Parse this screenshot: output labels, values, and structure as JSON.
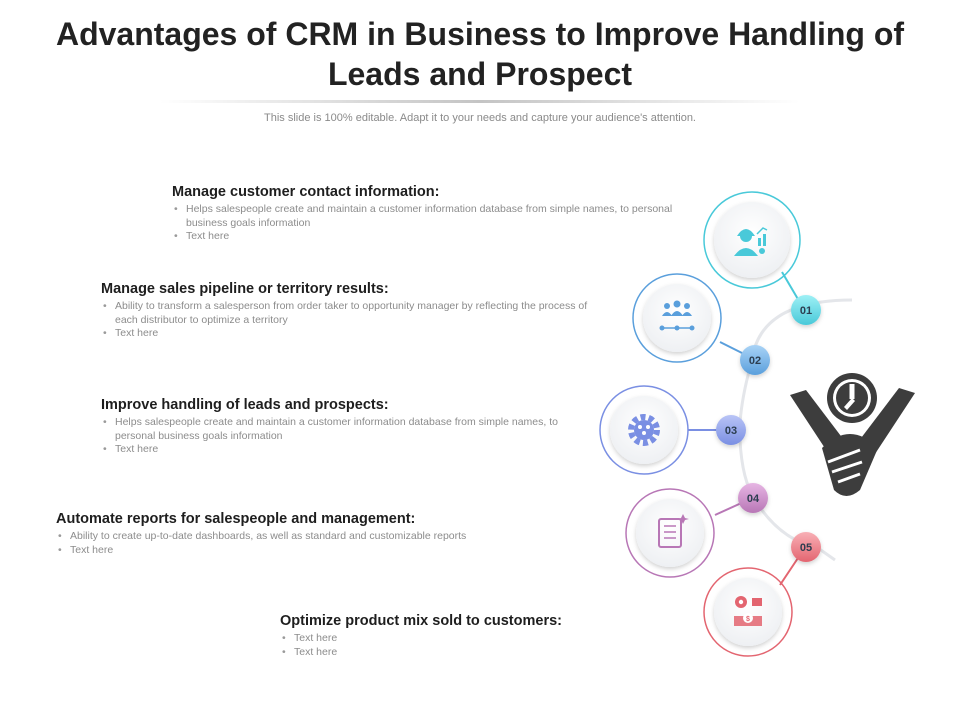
{
  "title": "Advantages of CRM in Business to Improve Handling of Leads and Prospect",
  "subtitle": "This slide is 100% editable. Adapt it to your needs and capture your audience's attention.",
  "items": [
    {
      "heading": "Manage customer contact information:",
      "bullets": [
        "Helps salespeople create and maintain a customer information database from simple names, to personal business goals information",
        "Text here"
      ],
      "number": "01",
      "color": "#3fc7d6",
      "icon": "salesperson-growth-icon"
    },
    {
      "heading": "Manage sales pipeline or territory results:",
      "bullets": [
        "Ability to transform a salesperson from order taker to opportunity manager by reflecting the process of each distributor to optimize a territory",
        "Text here"
      ],
      "number": "02",
      "color": "#4a9bd8",
      "icon": "team-network-icon"
    },
    {
      "heading": "Improve handling of leads and prospects:",
      "bullets": [
        "Helps salespeople create and maintain a customer information database from simple names, to personal business goals information",
        "Text here"
      ],
      "number": "03",
      "color": "#6e86e0",
      "icon": "gear-people-icon"
    },
    {
      "heading": "Automate reports for salespeople and management:",
      "bullets": [
        "Ability to create up-to-date dashboards, as well as standard and customizable reports",
        "Text here"
      ],
      "number": "04",
      "color": "#b46fb3",
      "icon": "checklist-report-icon"
    },
    {
      "heading": "Optimize product mix sold to customers:",
      "bullets": [
        "Text here",
        "Text here"
      ],
      "number": "05",
      "color": "#e4626b",
      "icon": "product-mix-icon"
    }
  ],
  "center_icon": "handshake-clock-icon"
}
